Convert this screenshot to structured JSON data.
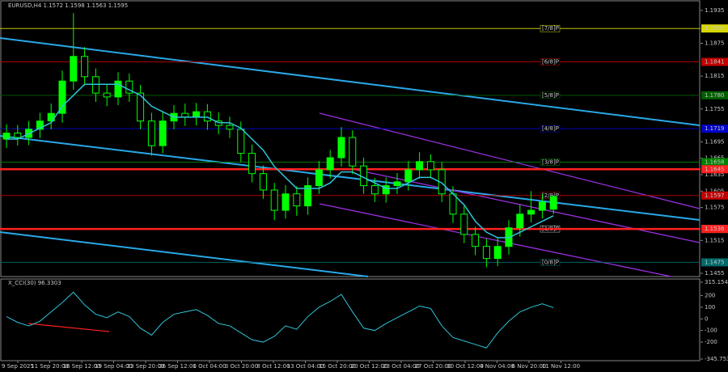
{
  "chart_data": [
    {
      "type": "candlestick",
      "title": "EURUSD,H4  1.1572 1.1598 1.1563 1.1595",
      "color": "#00ff00",
      "open": [
        1.17,
        1.1711,
        1.1703,
        1.1718,
        1.1733,
        1.1747,
        1.1806,
        1.1851,
        1.1814,
        1.1784,
        1.1777,
        1.1806,
        1.1784,
        1.1733,
        1.1688,
        1.1733,
        1.1747,
        1.174,
        1.175,
        1.1733,
        1.1725,
        1.1718,
        1.1674,
        1.1637,
        1.1607,
        1.157,
        1.16,
        1.1578,
        1.1615,
        1.1644,
        1.1666,
        1.1703,
        1.1651,
        1.1615,
        1.16,
        1.1615,
        1.1622,
        1.1644,
        1.1659,
        1.1644,
        1.16,
        1.1563,
        1.1526,
        1.1504,
        1.1482,
        1.1504,
        1.1538,
        1.1563,
        1.157,
        1.1572
      ],
      "high": [
        1.1727,
        1.1726,
        1.1733,
        1.1748,
        1.1765,
        1.1825,
        1.193,
        1.1868,
        1.1829,
        1.18,
        1.1822,
        1.182,
        1.1799,
        1.1748,
        1.175,
        1.1762,
        1.1765,
        1.1766,
        1.1764,
        1.1749,
        1.1741,
        1.1732,
        1.169,
        1.1652,
        1.162,
        1.1616,
        1.1614,
        1.163,
        1.166,
        1.168,
        1.1722,
        1.1716,
        1.1666,
        1.1629,
        1.163,
        1.1638,
        1.166,
        1.1676,
        1.1672,
        1.1658,
        1.1614,
        1.1578,
        1.154,
        1.1518,
        1.1519,
        1.1552,
        1.158,
        1.1605,
        1.16,
        1.1598
      ],
      "low": [
        1.1684,
        1.1688,
        1.1689,
        1.1702,
        1.1718,
        1.173,
        1.179,
        1.1798,
        1.1768,
        1.176,
        1.1762,
        1.1768,
        1.1718,
        1.167,
        1.1674,
        1.1718,
        1.1724,
        1.1725,
        1.1717,
        1.1709,
        1.1702,
        1.1658,
        1.1621,
        1.1591,
        1.1552,
        1.1555,
        1.156,
        1.1562,
        1.16,
        1.1628,
        1.165,
        1.1636,
        1.16,
        1.1585,
        1.1584,
        1.16,
        1.1606,
        1.1628,
        1.1629,
        1.1585,
        1.1547,
        1.151,
        1.1488,
        1.1466,
        1.1468,
        1.1489,
        1.1522,
        1.1548,
        1.1555,
        1.1563
      ],
      "close": [
        1.1711,
        1.1703,
        1.1718,
        1.1733,
        1.1747,
        1.1806,
        1.1851,
        1.1814,
        1.1784,
        1.1777,
        1.1806,
        1.1784,
        1.1733,
        1.1688,
        1.1733,
        1.1747,
        1.174,
        1.175,
        1.1733,
        1.1725,
        1.1718,
        1.1674,
        1.1637,
        1.1607,
        1.157,
        1.16,
        1.1578,
        1.1615,
        1.1644,
        1.1666,
        1.1703,
        1.1651,
        1.1615,
        1.16,
        1.1615,
        1.1622,
        1.1644,
        1.1659,
        1.1644,
        1.16,
        1.1563,
        1.1526,
        1.1504,
        1.1482,
        1.1504,
        1.1538,
        1.1563,
        1.157,
        1.1585,
        1.1595
      ],
      "ma": {
        "color": "#2ec4d8",
        "values": [
          1.17,
          1.17,
          1.171,
          1.172,
          1.173,
          1.176,
          1.178,
          1.18,
          1.18,
          1.18,
          1.18,
          1.179,
          1.178,
          1.176,
          1.175,
          1.174,
          1.174,
          1.174,
          1.174,
          1.173,
          1.173,
          1.172,
          1.17,
          1.168,
          1.165,
          1.163,
          1.161,
          1.161,
          1.161,
          1.162,
          1.164,
          1.164,
          1.163,
          1.162,
          1.161,
          1.161,
          1.162,
          1.163,
          1.163,
          1.162,
          1.16,
          1.158,
          1.155,
          1.153,
          1.152,
          1.152,
          1.153,
          1.154,
          1.155,
          1.156
        ]
      },
      "ylim": [
        1.1449,
        1.1954
      ],
      "yticks": [
        1.1935,
        1.1875,
        1.1815,
        1.1755,
        1.1695,
        1.1665,
        1.1635,
        1.1605,
        1.1575,
        1.1515,
        1.1455
      ],
      "levels": [
        {
          "value": 1.1902,
          "label": "1.1902",
          "tag": "[7/8]P",
          "color": "#d8d800"
        },
        {
          "value": 1.1841,
          "label": "1.1841",
          "tag": "[6/8]P",
          "color": "#c00000"
        },
        {
          "value": 1.178,
          "label": "1.1780",
          "tag": "[5/8]P",
          "color": "#006000"
        },
        {
          "value": 1.1719,
          "label": "1.1719",
          "tag": "[4/8]P",
          "color": "#0000c8"
        },
        {
          "value": 1.1658,
          "label": "1.1658",
          "tag": "[3/8]P",
          "color": "#008000"
        },
        {
          "value": 1.1597,
          "label": "1.1597",
          "tag": "[2/8]P",
          "color": "#c00000"
        },
        {
          "value": 1.1536,
          "label": "1.1536",
          "tag": "[1/8]P",
          "color": "#d0d0d0"
        },
        {
          "value": 1.1475,
          "label": "1.1475",
          "tag": "[0/8]P",
          "color": "#006868"
        }
      ],
      "support_lines": [
        {
          "value": 1.1645,
          "label": "1.1645"
        },
        {
          "value": 1.1536,
          "label": "1.1536"
        }
      ],
      "support_color": "#ff2020",
      "x_labels": [
        "9 Sep 2025",
        "11 Sep 20:00",
        "16 Sep 12:00",
        "19 Sep 04:00",
        "23 Sep 20:00",
        "26 Sep 12:00",
        "1 Oct 04:00",
        "3 Oct 20:00",
        "8 Oct 12:00",
        "13 Oct 04:00",
        "15 Oct 20:00",
        "20 Oct 12:00",
        "23 Oct 04:00",
        "27 Oct 20:00",
        "30 Oct 12:00",
        "4 Nov 04:00",
        "6 Nov 20:00",
        "11 Nov 12:00"
      ]
    },
    {
      "type": "line",
      "title": "X_CCI(30) 96.3303",
      "color": "#2ec4d8",
      "values": [
        20,
        -30,
        -60,
        -20,
        60,
        140,
        230,
        120,
        40,
        10,
        60,
        20,
        -80,
        -140,
        -30,
        40,
        60,
        80,
        30,
        -40,
        -60,
        -120,
        -180,
        -200,
        -150,
        -60,
        -90,
        20,
        100,
        150,
        210,
        60,
        -80,
        -100,
        -40,
        10,
        60,
        110,
        90,
        -60,
        -160,
        -190,
        -220,
        -250,
        -120,
        -20,
        60,
        100,
        130,
        96.3303
      ],
      "ylim": [
        -345.7534,
        315.1542
      ],
      "yticks": [
        315.1542,
        200,
        100,
        0,
        -100,
        -200,
        -345.7534
      ]
    }
  ]
}
